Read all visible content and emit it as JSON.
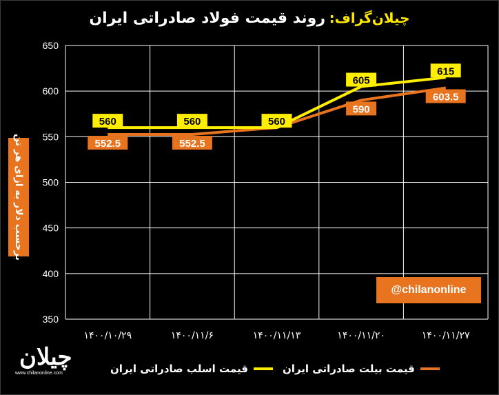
{
  "title": {
    "brand": "چیلان‌گراف:",
    "main": "روند قیمت فولاد صادراتی ایران"
  },
  "colors": {
    "slab": "#ffee00",
    "billet": "#e8741f",
    "background": "#000000",
    "grid": "#ffffff"
  },
  "handle": "@chilanonline",
  "logo": {
    "word": "چیلان",
    "url": "www.chilanonline.com"
  },
  "chart_data": {
    "type": "line",
    "ylabel": "برحسب دلار به ازای هر تن",
    "ylim": [
      350,
      650
    ],
    "yticks": [
      350,
      400,
      450,
      500,
      550,
      600,
      650
    ],
    "categories": [
      "۱۴۰۰/۱۰/۲۹",
      "۱۴۰۰/۱۱/۶",
      "۱۴۰۰/۱۱/۱۳",
      "۱۴۰۰/۱۱/۲۰",
      "۱۴۰۰/۱۱/۲۷"
    ],
    "grid": true,
    "series": [
      {
        "name": "قیمت اسلب صادراتی ایران",
        "color": "#ffee00",
        "values": [
          560,
          560,
          560,
          605,
          615
        ],
        "labels": [
          "560",
          "560",
          "560",
          "605",
          "615"
        ]
      },
      {
        "name": "قیمت بیلت صادراتی ایران",
        "color": "#e8741f",
        "values": [
          552.5,
          552.5,
          560,
          590,
          603.5
        ],
        "labels": [
          "552.5",
          "552.5",
          "",
          "590",
          "603.5"
        ]
      }
    ]
  }
}
